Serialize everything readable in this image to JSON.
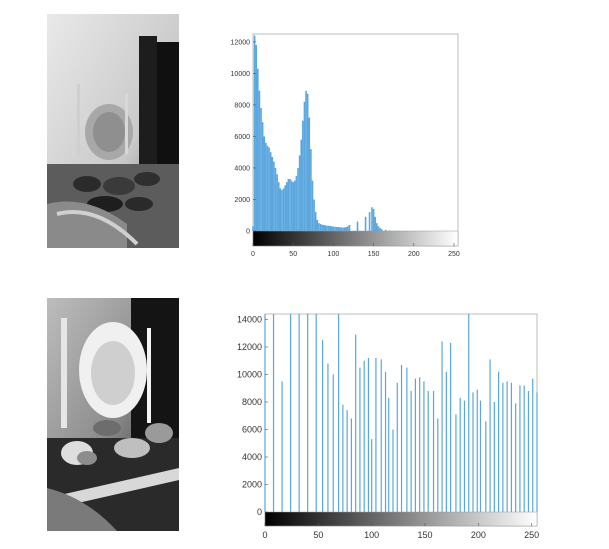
{
  "images": [
    {
      "name": "original-grayscale-photo",
      "description_hidden": true
    },
    {
      "name": "equalized-grayscale-photo",
      "description_hidden": true
    }
  ],
  "chart_data": [
    {
      "type": "bar",
      "title": "",
      "xlabel": "",
      "ylabel": "",
      "xlim": [
        0,
        255
      ],
      "ylim": [
        0,
        12500
      ],
      "xticks": [
        0,
        50,
        100,
        150,
        200,
        250
      ],
      "yticks": [
        0,
        2000,
        4000,
        6000,
        8000,
        10000,
        12000
      ],
      "bar_color": "#5aa6de",
      "grid": false,
      "colorbar": "grayscale",
      "x": [
        0,
        2,
        4,
        6,
        8,
        10,
        12,
        14,
        16,
        18,
        20,
        22,
        24,
        26,
        28,
        30,
        32,
        34,
        36,
        38,
        40,
        42,
        44,
        46,
        48,
        50,
        52,
        54,
        56,
        58,
        60,
        62,
        64,
        66,
        68,
        70,
        72,
        74,
        76,
        78,
        80,
        82,
        84,
        86,
        88,
        90,
        92,
        94,
        96,
        98,
        100,
        102,
        104,
        106,
        108,
        110,
        112,
        114,
        116,
        118,
        120,
        130,
        140,
        145,
        148,
        150,
        152,
        154,
        156,
        158,
        160,
        165,
        170,
        180,
        200,
        220,
        240,
        255
      ],
      "values": [
        300,
        12400,
        11800,
        10300,
        8900,
        7800,
        6900,
        6000,
        5600,
        5400,
        5300,
        5000,
        4700,
        4400,
        4000,
        3600,
        3100,
        2700,
        2600,
        2700,
        2900,
        3100,
        3300,
        3300,
        3200,
        3100,
        3200,
        3500,
        4000,
        4800,
        5800,
        7000,
        8200,
        8900,
        8700,
        7200,
        5200,
        3200,
        2000,
        1200,
        700,
        500,
        450,
        400,
        380,
        360,
        340,
        330,
        320,
        300,
        280,
        270,
        260,
        250,
        240,
        230,
        220,
        230,
        250,
        300,
        380,
        600,
        900,
        1200,
        1500,
        1400,
        900,
        500,
        300,
        200,
        120,
        80,
        40,
        10,
        0,
        0,
        0,
        0
      ]
    },
    {
      "type": "bar",
      "title": "",
      "xlabel": "",
      "ylabel": "",
      "xlim": [
        0,
        255
      ],
      "ylim": [
        0,
        14400
      ],
      "xticks": [
        0,
        50,
        100,
        150,
        200,
        250
      ],
      "yticks": [
        0,
        2000,
        4000,
        6000,
        8000,
        10000,
        12000,
        14000
      ],
      "bar_color": "#5aa6de",
      "grid": false,
      "colorbar": "grayscale",
      "x": [
        0,
        8,
        16,
        24,
        32,
        40,
        48,
        54,
        59,
        64,
        69,
        73,
        77,
        81,
        85,
        89,
        93,
        97,
        100,
        104,
        109,
        113,
        116,
        120,
        124,
        128,
        133,
        137,
        141,
        145,
        149,
        153,
        158,
        162,
        166,
        170,
        174,
        179,
        183,
        187,
        191,
        195,
        199,
        202,
        207,
        211,
        215,
        219,
        223,
        227,
        231,
        235,
        239,
        243,
        247,
        251,
        255
      ],
      "values": [
        14400,
        14400,
        9500,
        14400,
        14400,
        14400,
        14400,
        12500,
        10800,
        10000,
        14400,
        7800,
        7400,
        6800,
        12900,
        10500,
        11000,
        11200,
        5300,
        11200,
        11100,
        10200,
        8300,
        6000,
        9400,
        10700,
        10500,
        8800,
        9700,
        9800,
        9500,
        8800,
        8800,
        6800,
        12400,
        10200,
        12300,
        7100,
        8300,
        8100,
        14400,
        8700,
        8900,
        8100,
        6600,
        11100,
        8000,
        10200,
        9400,
        9500,
        9400,
        7900,
        9200,
        9200,
        8800,
        9700,
        8700
      ]
    }
  ]
}
